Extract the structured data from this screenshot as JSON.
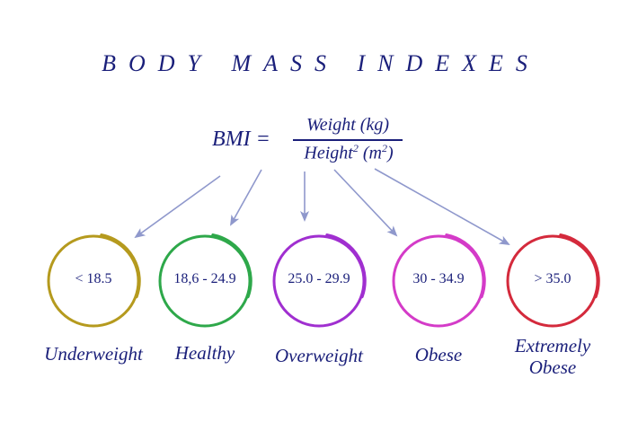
{
  "title": "BODY MASS INDEXES",
  "formula": {
    "lhs": "BMI =",
    "numerator": "Weight (kg)",
    "denominator_pre": "Height",
    "denominator_sup": "2",
    "denominator_mid": " (m",
    "denominator_sup2": "2",
    "denominator_post": ")"
  },
  "categories": [
    {
      "range": "< 18.5",
      "label": "Underweight",
      "color": "#b59a1e"
    },
    {
      "range": "18,6 - 24.9",
      "label": "Healthy",
      "color": "#2ea84a"
    },
    {
      "range": "25.0 - 29.9",
      "label": "Overweight",
      "color": "#a02fd0"
    },
    {
      "range": "30 - 34.9",
      "label": "Obese",
      "color": "#d43bc8"
    },
    {
      "range": "> 35.0",
      "label": "Extremely Obese",
      "color": "#d42a3c"
    }
  ],
  "arrow_color": "#8f98cc",
  "text_color": "#1a1f7a"
}
